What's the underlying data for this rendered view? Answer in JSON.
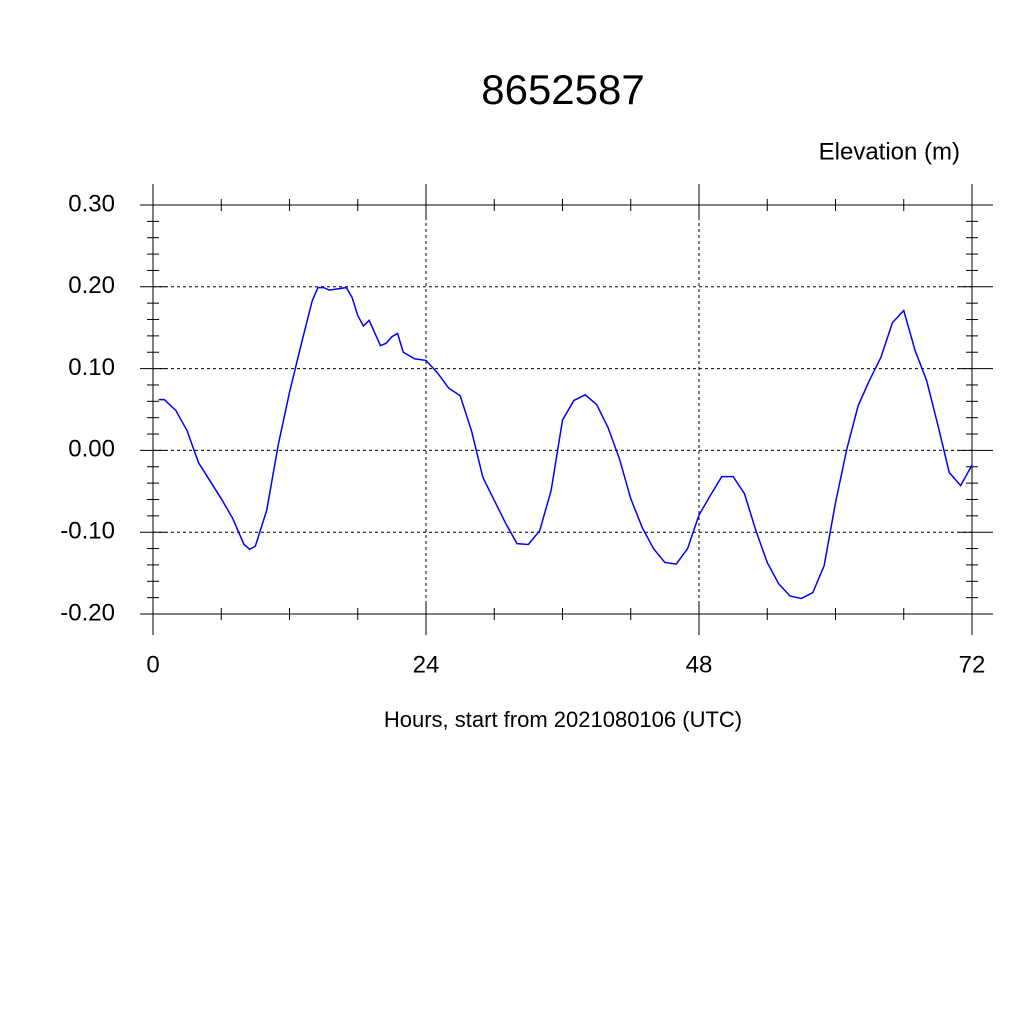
{
  "chart_data": {
    "type": "line",
    "title": "8652587",
    "y_label": "Elevation (m)",
    "x_label": "Hours, start from 2021080106 (UTC)",
    "x": [
      0.5,
      1,
      2,
      3,
      4,
      5,
      6,
      7,
      8,
      8.5,
      9,
      10,
      11,
      12,
      13,
      14,
      14.5,
      15,
      15.5,
      16,
      17,
      17.5,
      18,
      18.5,
      19,
      20,
      20.5,
      21,
      21.5,
      22,
      23,
      24,
      25,
      26,
      27,
      28,
      29,
      30,
      31,
      32,
      33,
      34,
      35,
      36,
      37,
      38,
      39,
      40,
      41,
      42,
      43,
      44,
      45,
      46,
      47,
      48,
      49,
      50,
      51,
      52,
      53,
      54,
      55,
      56,
      57,
      58,
      59,
      60,
      61,
      62,
      63,
      64,
      65,
      66,
      67,
      68,
      69,
      70,
      71,
      72
    ],
    "series": [
      {
        "name": "Elevation",
        "color": "#0000ff",
        "values": [
          0.062,
          0.062,
          0.049,
          0.024,
          -0.015,
          -0.037,
          -0.059,
          -0.083,
          -0.115,
          -0.121,
          -0.117,
          -0.073,
          0.006,
          0.071,
          0.128,
          0.183,
          0.199,
          0.199,
          0.196,
          0.197,
          0.199,
          0.187,
          0.165,
          0.152,
          0.159,
          0.128,
          0.131,
          0.139,
          0.143,
          0.12,
          0.112,
          0.11,
          0.095,
          0.076,
          0.067,
          0.024,
          -0.033,
          -0.061,
          -0.089,
          -0.114,
          -0.115,
          -0.098,
          -0.049,
          0.037,
          0.061,
          0.068,
          0.056,
          0.028,
          -0.01,
          -0.059,
          -0.094,
          -0.12,
          -0.137,
          -0.139,
          -0.12,
          -0.079,
          -0.055,
          -0.032,
          -0.032,
          -0.053,
          -0.098,
          -0.137,
          -0.163,
          -0.178,
          -0.181,
          -0.174,
          -0.141,
          -0.064,
          0.002,
          0.055,
          0.086,
          0.114,
          0.156,
          0.171,
          0.122,
          0.086,
          0.031,
          -0.027,
          -0.043,
          -0.018
        ]
      }
    ],
    "xlim": [
      0,
      72
    ],
    "xticks": [
      0,
      24,
      48,
      72
    ],
    "ylim": [
      -0.2,
      0.3
    ],
    "yticks": [
      {
        "value": -0.2,
        "label": "-0.20"
      },
      {
        "value": -0.1,
        "label": "-0.10"
      },
      {
        "value": 0,
        "label": "0.00"
      },
      {
        "value": 0.1,
        "label": "0.10"
      },
      {
        "value": 0.2,
        "label": "0.20"
      },
      {
        "value": 0.3,
        "label": "0.30"
      }
    ],
    "grid": true
  }
}
